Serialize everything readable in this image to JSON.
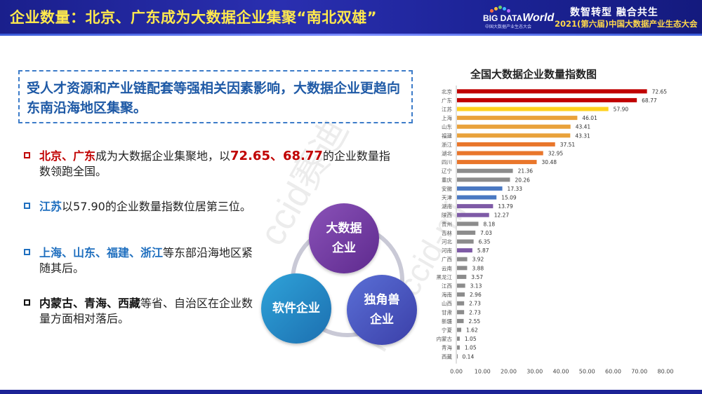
{
  "header": {
    "title": "企业数量：北京、广东成为大数据企业集聚“南北双雄”",
    "logo_main": "BIG DATA",
    "logo_world": "World",
    "logo_sub": "中国大数据产业生态大会",
    "slogan": "数智转型 融合共生",
    "slogan_sub": "2021(第六届)中国大数据产业生态大会"
  },
  "callout": {
    "text": "受人才资源和产业链配套等强相关因素影响，大数据企业更趋向东南沿海地区集聚。"
  },
  "bullets": [
    {
      "hl": "北京、广东",
      "t1": "成为大数据企业集聚地，以",
      "num": "72.65、68.77",
      "t2": "的企业数量指数领跑全国。"
    },
    {
      "hl": "江苏",
      "t1": "以57.90的企业数量指数位居第三位。"
    },
    {
      "hl": "上海、山东、福建、浙江",
      "t1": "等东部沿海地区紧随其后。"
    },
    {
      "hl": "内蒙古、青海、西藏",
      "t1": "等省、自治区在企业数量方面相对落后。"
    }
  ],
  "circles": {
    "top_line1": "大数据",
    "top_line2": "企业",
    "left": "软件企业",
    "right_line1": "独角兽",
    "right_line2": "企业"
  },
  "watermark": {
    "text1": "ccid赛迪",
    "text2": "ID：ccid-mi"
  },
  "colors": {
    "red": "#c00000",
    "orange": "#e9762b",
    "yellow": "#ffd21f",
    "gold": "#c9a43a",
    "gray": "#8c8c8c",
    "blue": "#4a78c2",
    "purple": "#7e5aa6"
  },
  "chart_data": {
    "type": "bar",
    "orientation": "horizontal",
    "title": "全国大数据企业数量指数图",
    "xlim": [
      0,
      80
    ],
    "xticks": [
      "0.00",
      "10.00",
      "20.00",
      "30.00",
      "40.00",
      "50.00",
      "60.00",
      "70.00",
      "80.00"
    ],
    "categories": [
      "北京",
      "广东",
      "江苏",
      "上海",
      "山东",
      "福建",
      "浙江",
      "湖北",
      "四川",
      "辽宁",
      "重庆",
      "安徽",
      "天津",
      "湖南",
      "陕西",
      "贵州",
      "吉林",
      "河北",
      "河南",
      "广西",
      "云南",
      "黑龙江",
      "江西",
      "海南",
      "山西",
      "甘肃",
      "新疆",
      "宁夏",
      "内蒙古",
      "青海",
      "西藏"
    ],
    "values": [
      72.65,
      68.77,
      57.9,
      46.01,
      43.41,
      43.31,
      37.51,
      32.95,
      30.48,
      21.36,
      20.26,
      17.33,
      15.09,
      13.79,
      12.27,
      8.18,
      7.03,
      6.35,
      5.87,
      3.92,
      3.88,
      3.57,
      3.13,
      2.96,
      2.73,
      2.73,
      2.55,
      1.62,
      1.05,
      1.05,
      0.14
    ],
    "labels": [
      "72.65",
      "68.77",
      "57.90",
      "46.01",
      "43.41",
      "43.31",
      "37.51",
      "32.95",
      "30.48",
      "21.36",
      "20.26",
      "17.33",
      "15.09",
      "13.79",
      "12.27",
      "8.18",
      "7.03",
      "6.35",
      "5.87",
      "3.92",
      "3.88",
      "3.57",
      "3.13",
      "2.96",
      "2.73",
      "2.73",
      "2.55",
      "1.62",
      "1.05",
      "1.05",
      "0.14"
    ],
    "bar_colors": [
      "#c00000",
      "#c00000",
      "#ffd21f",
      "#e9a23b",
      "#e9a23b",
      "#e9a23b",
      "#e9762b",
      "#e9762b",
      "#e9762b",
      "#8c8c8c",
      "#8c8c8c",
      "#4a78c2",
      "#4a78c2",
      "#7e5aa6",
      "#7e5aa6",
      "#8c8c8c",
      "#8c8c8c",
      "#8c8c8c",
      "#7e5aa6",
      "#8c8c8c",
      "#8c8c8c",
      "#8c8c8c",
      "#8c8c8c",
      "#8c8c8c",
      "#8c8c8c",
      "#8c8c8c",
      "#8c8c8c",
      "#8c8c8c",
      "#8c8c8c",
      "#8c8c8c",
      "#8c8c8c"
    ]
  }
}
